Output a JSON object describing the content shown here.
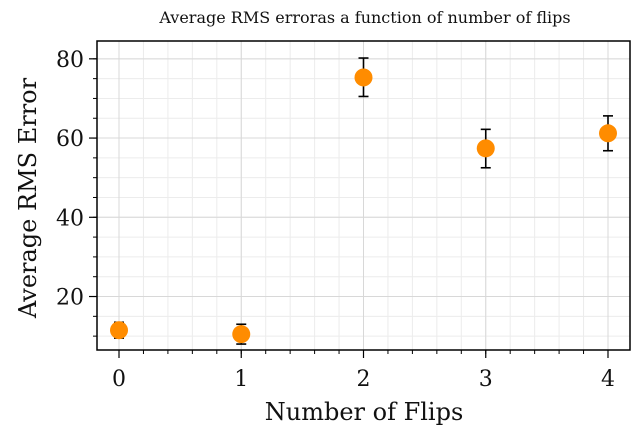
{
  "chart_data": {
    "type": "scatter",
    "title": "Average RMS erroras a function of number of flips",
    "xlabel": "Number of Flips",
    "ylabel": "Average RMS Error",
    "xlim": [
      -0.18,
      4.18
    ],
    "ylim": [
      6.5,
      84.5
    ],
    "xticks": [
      0,
      1,
      2,
      3,
      4
    ],
    "yticks": [
      20,
      40,
      60,
      80
    ],
    "grid": true,
    "x": [
      0,
      1,
      2,
      3,
      4
    ],
    "y": [
      11.5,
      10.5,
      75.3,
      57.4,
      61.2
    ],
    "yerr_low": [
      9.5,
      8.0,
      70.5,
      52.5,
      56.8
    ],
    "yerr_high": [
      13.5,
      13.0,
      80.2,
      62.2,
      65.6
    ],
    "marker_color": "#ff8c00",
    "errorbar_color": "#000000"
  }
}
